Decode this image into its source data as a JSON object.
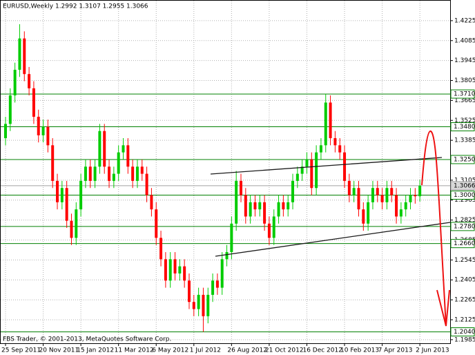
{
  "chart_data": {
    "type": "candlestick",
    "title": "EURUSD,Weekly  1.2992 1.3107 1.2955 1.3066",
    "annotation": "FBS Trader, © 2001-2013, MetaQuotes Software Corp.",
    "up_color": "#00cc00",
    "down_color": "#ff0000",
    "grid": true,
    "ylim": [
      1.196,
      1.437
    ],
    "yticks": [
      1.4225,
      1.4085,
      1.3945,
      1.3805,
      1.3665,
      1.3525,
      1.3385,
      1.3105,
      1.2965,
      1.2825,
      1.2685,
      1.2545,
      1.2405,
      1.2265,
      1.2125,
      1.1985
    ],
    "levels": [
      {
        "value": 1.371,
        "label": "1.3710",
        "color": "#008000"
      },
      {
        "value": 1.348,
        "label": "1.3480",
        "color": "#008000"
      },
      {
        "value": 1.325,
        "label": "1.3250",
        "color": "#008000"
      },
      {
        "value": 1.3066,
        "label": "1.3066",
        "color": "#a0a0a0"
      },
      {
        "value": 1.3,
        "label": "1.3000",
        "color": "#008000"
      },
      {
        "value": 1.278,
        "label": "1.2780",
        "color": "#008000"
      },
      {
        "value": 1.266,
        "label": "1.2660",
        "color": "#008000"
      },
      {
        "value": 1.204,
        "label": "1.2040",
        "color": "#008000"
      }
    ],
    "categories": [
      "25 Sep 2011",
      null,
      null,
      null,
      null,
      null,
      null,
      null,
      "20 Nov 2011",
      null,
      null,
      null,
      null,
      null,
      null,
      null,
      "15 Jan 2012",
      null,
      null,
      null,
      null,
      null,
      null,
      null,
      "11 Mar 2012",
      null,
      null,
      null,
      null,
      null,
      null,
      null,
      "6 May 2012",
      null,
      null,
      null,
      null,
      null,
      null,
      null,
      "1 Jul 2012",
      null,
      null,
      null,
      null,
      null,
      null,
      null,
      "26 Aug 2012",
      null,
      null,
      null,
      null,
      null,
      null,
      null,
      "21 Oct 2012",
      null,
      null,
      null,
      null,
      null,
      null,
      null,
      "16 Dec 2012",
      null,
      null,
      null,
      null,
      null,
      null,
      null,
      "10 Feb 2013",
      null,
      null,
      null,
      null,
      null,
      null,
      null,
      "7 Apr 2013",
      null,
      null,
      null,
      null,
      null,
      null,
      null,
      "2 Jun 2013"
    ],
    "open": [
      1.34,
      1.35,
      1.37,
      1.388,
      1.41,
      1.385,
      1.375,
      1.355,
      1.342,
      1.348,
      1.335,
      1.31,
      1.295,
      1.305,
      1.282,
      1.27,
      1.29,
      1.31,
      1.32,
      1.31,
      1.32,
      1.345,
      1.32,
      1.31,
      1.315,
      1.33,
      1.335,
      1.32,
      1.31,
      1.32,
      1.315,
      1.3,
      1.29,
      1.27,
      1.255,
      1.24,
      1.255,
      1.245,
      1.25,
      1.24,
      1.225,
      1.22,
      1.23,
      1.215,
      1.23,
      1.24,
      1.235,
      1.255,
      1.26,
      1.28,
      1.31,
      1.3,
      1.285,
      1.295,
      1.29,
      1.295,
      1.28,
      1.27,
      1.285,
      1.295,
      1.29,
      1.295,
      1.31,
      1.315,
      1.32,
      1.325,
      1.305,
      1.33,
      1.335,
      1.365,
      1.34,
      1.335,
      1.33,
      1.31,
      1.3,
      1.305,
      1.29,
      1.28,
      1.295,
      1.305,
      1.3,
      1.295,
      1.305,
      1.3,
      1.285,
      1.29,
      1.295,
      1.3,
      1.2992
    ],
    "high": [
      1.355,
      1.375,
      1.393,
      1.42,
      1.415,
      1.39,
      1.38,
      1.36,
      1.353,
      1.353,
      1.34,
      1.315,
      1.31,
      1.31,
      1.287,
      1.295,
      1.315,
      1.325,
      1.325,
      1.325,
      1.35,
      1.35,
      1.325,
      1.32,
      1.335,
      1.34,
      1.34,
      1.325,
      1.325,
      1.325,
      1.32,
      1.305,
      1.295,
      1.275,
      1.26,
      1.26,
      1.26,
      1.255,
      1.255,
      1.245,
      1.23,
      1.235,
      1.235,
      1.235,
      1.245,
      1.245,
      1.26,
      1.265,
      1.285,
      1.317,
      1.315,
      1.305,
      1.3,
      1.3,
      1.3,
      1.3,
      1.285,
      1.29,
      1.3,
      1.3,
      1.3,
      1.315,
      1.32,
      1.325,
      1.33,
      1.33,
      1.335,
      1.34,
      1.371,
      1.37,
      1.345,
      1.34,
      1.335,
      1.315,
      1.31,
      1.31,
      1.295,
      1.3,
      1.31,
      1.31,
      1.305,
      1.31,
      1.31,
      1.305,
      1.295,
      1.3,
      1.305,
      1.305,
      1.3107
    ],
    "low": [
      1.335,
      1.345,
      1.365,
      1.383,
      1.38,
      1.37,
      1.35,
      1.337,
      1.337,
      1.33,
      1.305,
      1.29,
      1.29,
      1.277,
      1.265,
      1.265,
      1.285,
      1.305,
      1.305,
      1.305,
      1.315,
      1.315,
      1.305,
      1.305,
      1.31,
      1.325,
      1.315,
      1.305,
      1.305,
      1.31,
      1.295,
      1.285,
      1.265,
      1.25,
      1.235,
      1.235,
      1.24,
      1.24,
      1.235,
      1.22,
      1.215,
      1.215,
      1.204,
      1.21,
      1.225,
      1.23,
      1.23,
      1.25,
      1.255,
      1.275,
      1.295,
      1.28,
      1.28,
      1.285,
      1.285,
      1.275,
      1.265,
      1.265,
      1.28,
      1.285,
      1.285,
      1.29,
      1.305,
      1.31,
      1.315,
      1.3,
      1.3,
      1.325,
      1.33,
      1.335,
      1.33,
      1.325,
      1.305,
      1.295,
      1.295,
      1.285,
      1.275,
      1.275,
      1.29,
      1.295,
      1.29,
      1.29,
      1.295,
      1.28,
      1.28,
      1.285,
      1.29,
      1.294,
      1.2955
    ],
    "close": [
      1.35,
      1.37,
      1.388,
      1.41,
      1.385,
      1.375,
      1.355,
      1.342,
      1.348,
      1.335,
      1.31,
      1.295,
      1.305,
      1.282,
      1.27,
      1.29,
      1.31,
      1.32,
      1.31,
      1.32,
      1.345,
      1.32,
      1.31,
      1.315,
      1.33,
      1.335,
      1.32,
      1.31,
      1.32,
      1.315,
      1.3,
      1.29,
      1.27,
      1.255,
      1.24,
      1.255,
      1.245,
      1.25,
      1.24,
      1.225,
      1.22,
      1.23,
      1.215,
      1.23,
      1.24,
      1.235,
      1.255,
      1.26,
      1.28,
      1.31,
      1.3,
      1.285,
      1.295,
      1.29,
      1.295,
      1.28,
      1.27,
      1.285,
      1.295,
      1.29,
      1.295,
      1.31,
      1.315,
      1.32,
      1.325,
      1.305,
      1.33,
      1.335,
      1.365,
      1.34,
      1.335,
      1.33,
      1.31,
      1.3,
      1.305,
      1.29,
      1.28,
      1.295,
      1.305,
      1.3,
      1.295,
      1.305,
      1.3,
      1.285,
      1.29,
      1.295,
      1.3,
      1.2992,
      1.3066
    ]
  }
}
